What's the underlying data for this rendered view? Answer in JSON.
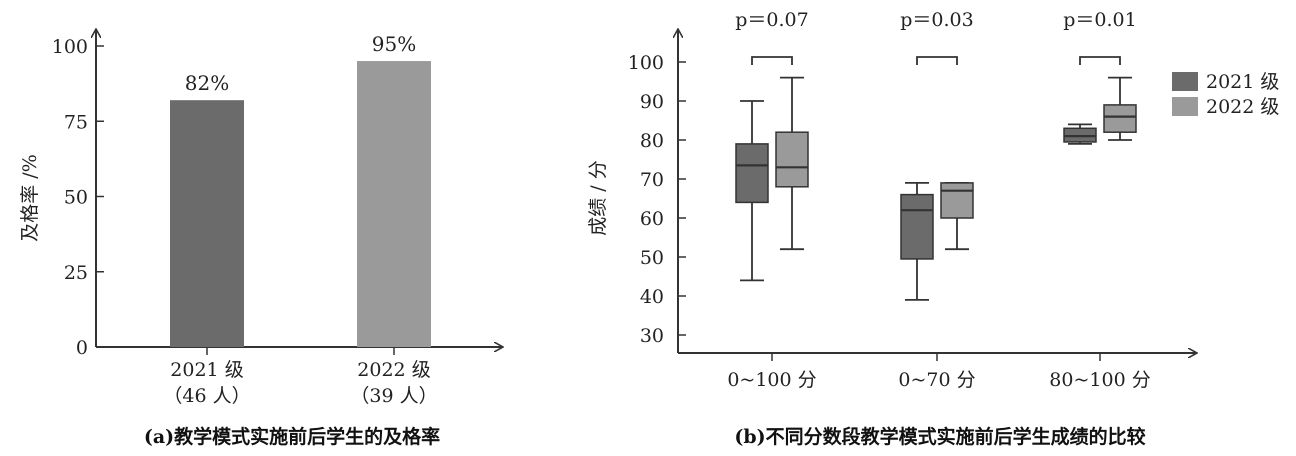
{
  "colors": {
    "y2021": "#6b6b6b",
    "y2022": "#9a9a9a",
    "axis": "#333333",
    "text": "#222222"
  },
  "chart_data": [
    {
      "type": "bar",
      "ylabel": "及格率 /%",
      "yticks": [
        "0",
        "25",
        "50",
        "75",
        "100"
      ],
      "ylim": [
        0,
        100
      ],
      "categories": [
        {
          "line1": "2021 级",
          "line2": "（46 人）"
        },
        {
          "line1": "2022 级",
          "line2": "（39 人）"
        }
      ],
      "values": [
        82,
        95
      ],
      "value_labels": [
        "82%",
        "95%"
      ],
      "caption": "(a)教学模式实施前后学生的及格率"
    },
    {
      "type": "box",
      "ylabel": "成绩 / 分",
      "yticks": [
        "30",
        "40",
        "50",
        "60",
        "70",
        "80",
        "90",
        "100"
      ],
      "ylim": [
        30,
        100
      ],
      "categories": [
        "0~100 分",
        "0~70 分",
        "80~100 分"
      ],
      "p_values": [
        "p＝0.07",
        "p＝0.03",
        "p＝0.01"
      ],
      "legend": [
        "2021 级",
        "2022 级"
      ],
      "legend_position": "top-right",
      "series": [
        {
          "name": "2021 级",
          "boxes": [
            {
              "min": 44,
              "q1": 64,
              "median": 73.5,
              "q3": 79,
              "max": 90
            },
            {
              "min": 39,
              "q1": 49.5,
              "median": 62,
              "q3": 66,
              "max": 69
            },
            {
              "min": 79,
              "q1": 79.5,
              "median": 81,
              "q3": 83,
              "max": 84
            }
          ]
        },
        {
          "name": "2022 级",
          "boxes": [
            {
              "min": 52,
              "q1": 68,
              "median": 73,
              "q3": 82,
              "max": 96
            },
            {
              "min": 52,
              "q1": 60,
              "median": 67,
              "q3": 69,
              "max": 69
            },
            {
              "min": 80,
              "q1": 82,
              "median": 86,
              "q3": 89,
              "max": 96
            }
          ]
        }
      ],
      "caption": "(b)不同分数段教学模式实施前后学生成绩的比较"
    }
  ]
}
